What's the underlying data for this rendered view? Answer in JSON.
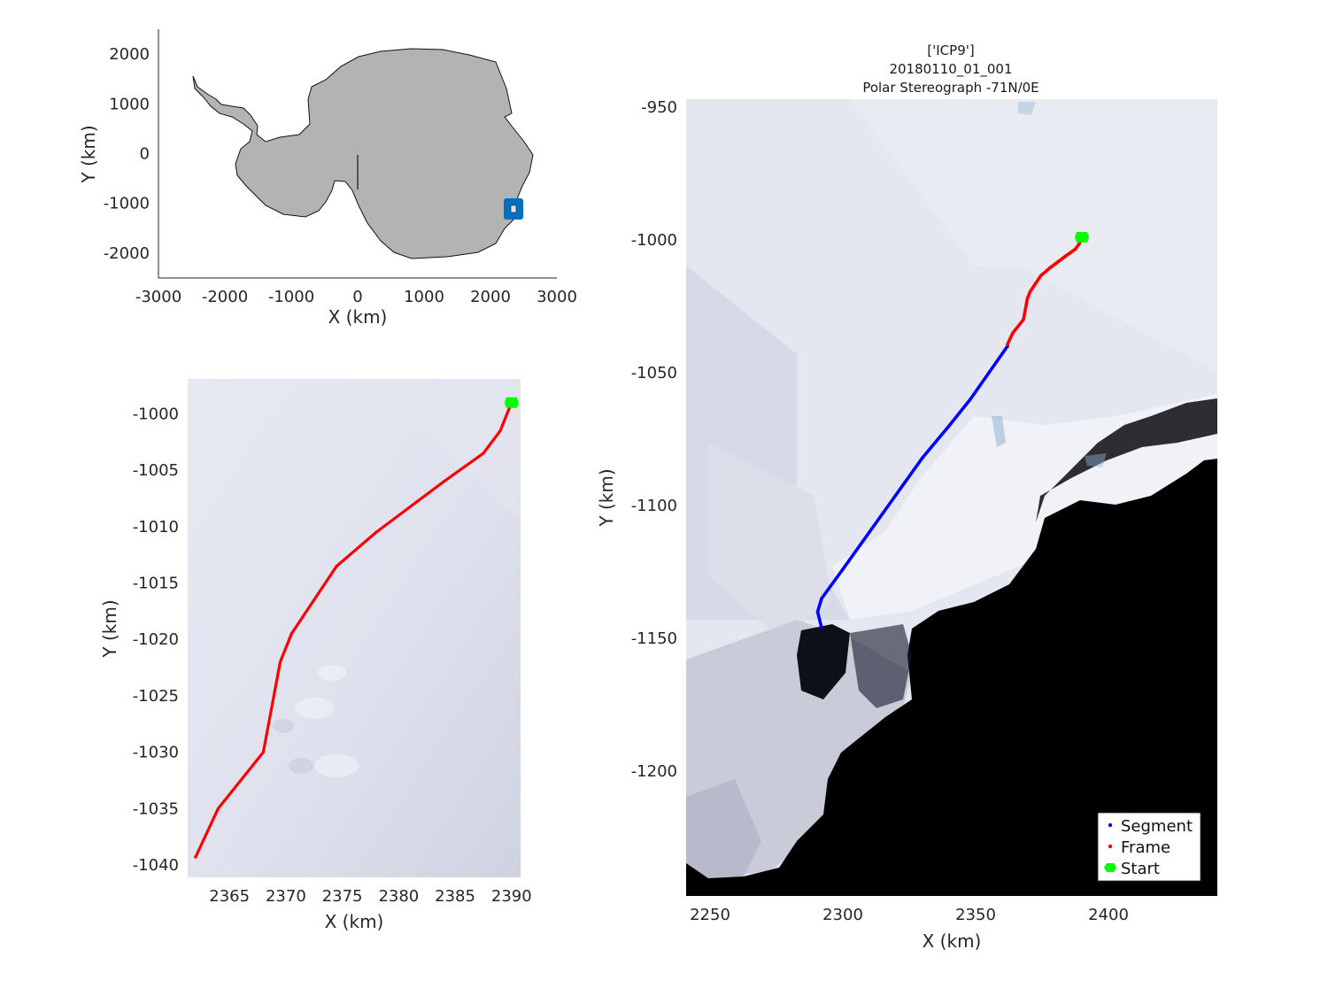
{
  "overview_map": {
    "xlabel": "X (km)",
    "ylabel": "Y (km)",
    "xticks": [
      "-3000",
      "-2000",
      "-1000",
      "0",
      "1000",
      "2000",
      "3000"
    ],
    "yticks": [
      "2000",
      "1000",
      "0",
      "-1000",
      "-2000"
    ],
    "xlim": [
      -3000,
      3000
    ],
    "ylim": [
      -2500,
      2500
    ],
    "continent_color": "#b3b3b3",
    "marker_color": "#0072bd",
    "marker_location": [
      2330,
      -1070
    ]
  },
  "frame_zoom": {
    "xlabel": "X (km)",
    "ylabel": "Y (km)",
    "xticks": [
      "2365",
      "2370",
      "2375",
      "2380",
      "2385",
      "2390"
    ],
    "yticks": [
      "-1000",
      "-1005",
      "-1010",
      "-1015",
      "-1020",
      "-1025",
      "-1030",
      "-1035",
      "-1040"
    ],
    "xlim": [
      2361.3,
      2390.8
    ],
    "ylim": [
      -1041.1,
      -996.9
    ]
  },
  "main_map": {
    "title_line1": "['ICP9']",
    "title_line2": "20180110_01_001",
    "title_line3": "Polar Stereograph -71N/0E",
    "xlabel": "X (km)",
    "ylabel": "Y (km)",
    "xticks": [
      "2250",
      "2300",
      "2350",
      "2400"
    ],
    "yticks": [
      "-950",
      "-1000",
      "-1050",
      "-1100",
      "-1150",
      "-1200"
    ],
    "xlim": [
      2241,
      2441
    ],
    "ylim": [
      -1247,
      -947
    ],
    "legend": {
      "segment": "Segment",
      "frame": "Frame",
      "start": "Start"
    },
    "colors": {
      "segment": "#0000ff",
      "frame": "#ff0000",
      "start": "#00ff00"
    }
  },
  "chart_data": {
    "type": "line",
    "series": [
      {
        "name": "Frame",
        "x": [
          2390.0,
          2389,
          2387.5,
          2384,
          2380,
          2378,
          2374.5,
          2372.5,
          2370.5,
          2369.5,
          2368,
          2364,
          2362
        ],
        "y": [
          -999.0,
          -1001.5,
          -1003.5,
          -1006,
          -1009,
          -1010.5,
          -1013.5,
          -1016.5,
          -1019.5,
          -1022,
          -1030,
          -1035,
          -1039.3
        ]
      },
      {
        "name": "Segment",
        "x": [
          2362,
          2355,
          2348,
          2340,
          2330,
          2320,
          2310,
          2300,
          2292,
          2290.5,
          2292
        ],
        "y": [
          -1040,
          -1050,
          -1060,
          -1070,
          -1082,
          -1096,
          -1110,
          -1124,
          -1135,
          -1140,
          -1146
        ]
      }
    ],
    "start": {
      "x": 2390.0,
      "y": -999.0
    }
  }
}
